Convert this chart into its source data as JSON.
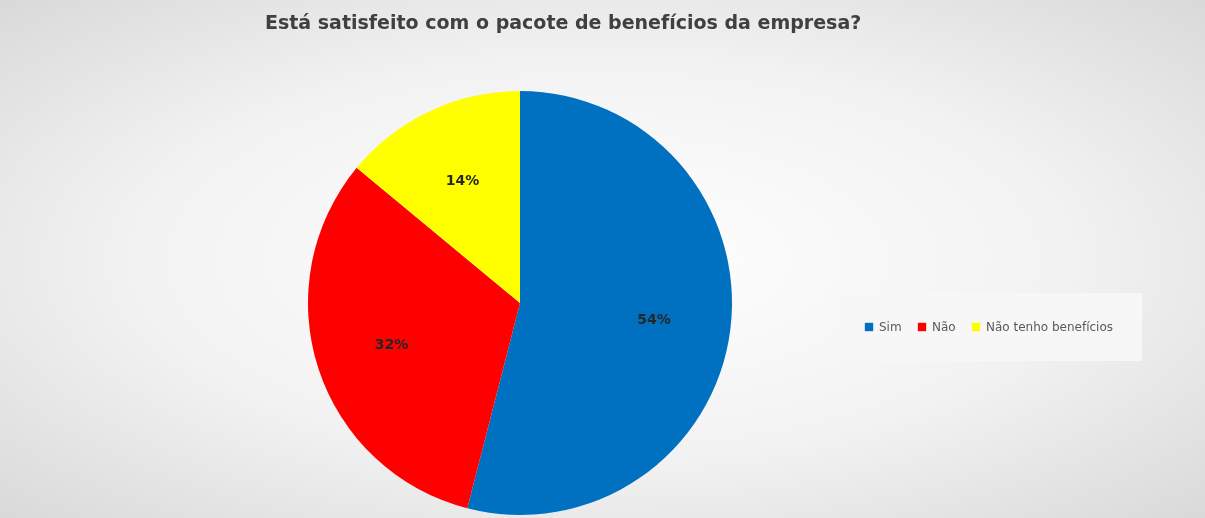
{
  "chart_data": {
    "type": "pie",
    "title": "Está satisfeito com o pacote de benefícios da empresa?",
    "categories": [
      "Sim",
      "Não",
      "Não tenho benefícios"
    ],
    "values": [
      54,
      32,
      14
    ],
    "colors": [
      "#0070c0",
      "#ff0000",
      "#ffff00"
    ],
    "value_labels": [
      "54%",
      "32%",
      "14%"
    ],
    "legend": "right"
  }
}
